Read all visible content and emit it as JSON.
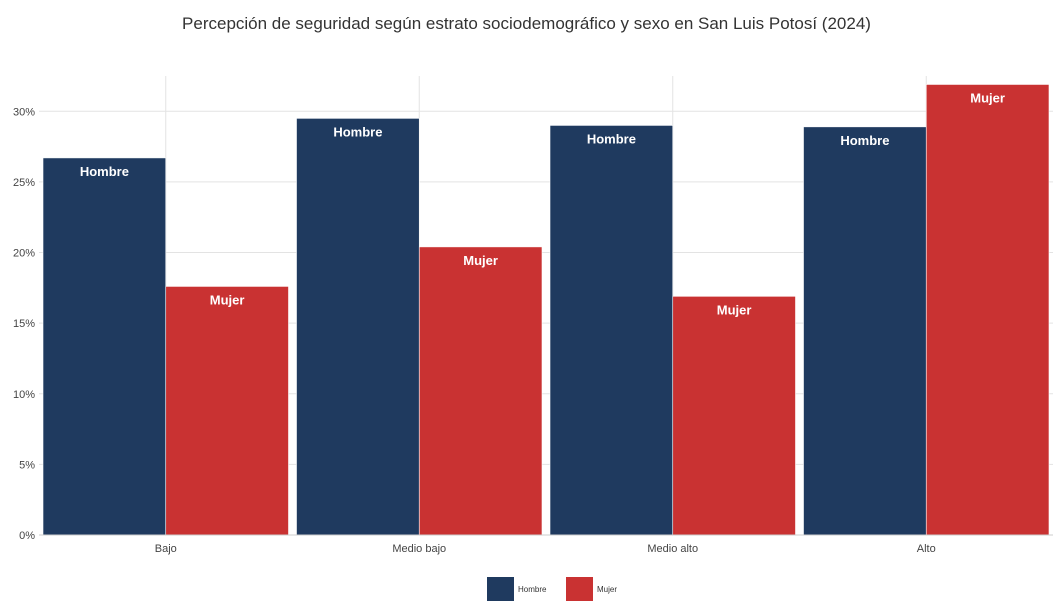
{
  "chart_data": {
    "type": "bar",
    "title": "Percepción de seguridad según estrato sociodemográfico y sexo en San Luis Potosí (2024)",
    "categories": [
      "Bajo",
      "Medio bajo",
      "Medio alto",
      "Alto"
    ],
    "series": [
      {
        "name": "Hombre",
        "values": [
          26.7,
          29.5,
          29.0,
          28.9
        ],
        "color": "#1f3a5f"
      },
      {
        "name": "Mujer",
        "values": [
          17.6,
          20.4,
          16.9,
          31.9
        ],
        "color": "#c93232"
      }
    ],
    "yticks": [
      "0%",
      "5%",
      "10%",
      "15%",
      "20%",
      "25%",
      "30%"
    ],
    "ylim": [
      0,
      32.5
    ],
    "grid": true,
    "legend_position": "bottom-center",
    "xlabel": "",
    "ylabel": ""
  }
}
